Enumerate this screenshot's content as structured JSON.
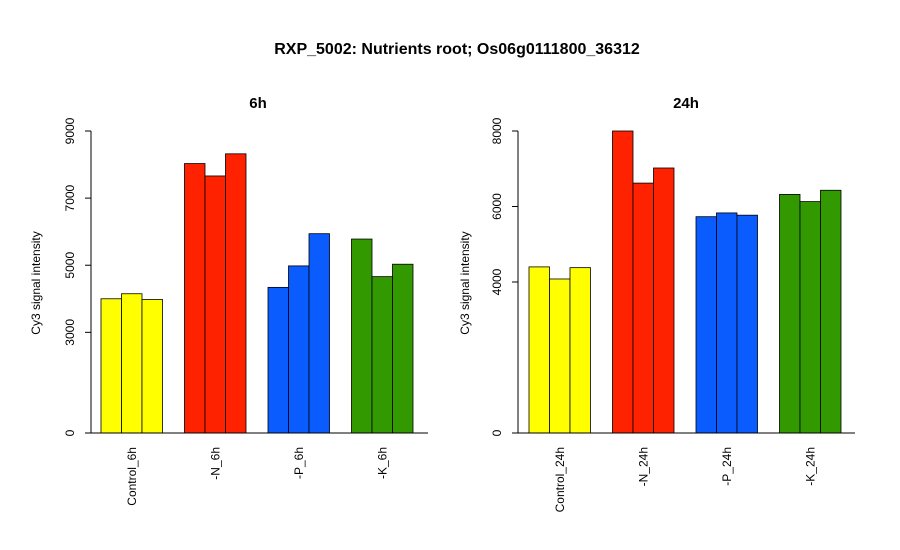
{
  "title": "RXP_5002: Nutrients root; Os06g0111800_36312",
  "chart_data": [
    {
      "type": "bar",
      "title": "6h",
      "ylabel": "Cy3 signal intensity",
      "ylim": [
        0,
        9000
      ],
      "yticks": [
        0,
        3000,
        5000,
        7000,
        9000
      ],
      "categories": [
        "Control_6h",
        "-N_6h",
        "-P_6h",
        "-K_6h"
      ],
      "colors": [
        "#ffff00",
        "#ff2200",
        "#0a5cff",
        "#339900"
      ],
      "replicates": [
        [
          4000,
          4150,
          3980
        ],
        [
          8030,
          7660,
          8320
        ],
        [
          4340,
          4980,
          5940
        ],
        [
          5780,
          4660,
          5030
        ]
      ]
    },
    {
      "type": "bar",
      "title": "24h",
      "ylabel": "Cy3 signal intensity",
      "ylim": [
        0,
        8000
      ],
      "yticks": [
        0,
        4000,
        6000,
        8000
      ],
      "categories": [
        "Control_24h",
        "-N_24h",
        "-P_24h",
        "-K_24h"
      ],
      "colors": [
        "#ffff00",
        "#ff2200",
        "#0a5cff",
        "#339900"
      ],
      "replicates": [
        [
          4400,
          4080,
          4380
        ],
        [
          8000,
          6620,
          7020
        ],
        [
          5730,
          5830,
          5770
        ],
        [
          6320,
          6130,
          6430
        ]
      ]
    }
  ]
}
